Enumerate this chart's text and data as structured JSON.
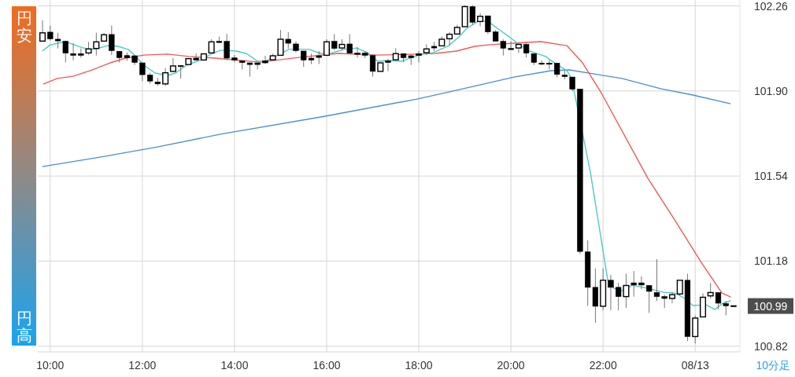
{
  "chart_data": {
    "type": "candlestick",
    "x": [
      9.833,
      10,
      10.167,
      10.333,
      10.5,
      10.667,
      10.833,
      11,
      11.167,
      11.333,
      11.5,
      11.667,
      11.833,
      12,
      12.167,
      12.333,
      12.5,
      12.667,
      12.833,
      13,
      13.167,
      13.333,
      13.5,
      13.667,
      13.833,
      14,
      14.167,
      14.333,
      14.5,
      14.667,
      14.833,
      15,
      15.167,
      15.333,
      15.5,
      15.667,
      15.833,
      16,
      16.167,
      16.333,
      16.5,
      16.667,
      16.833,
      17,
      17.167,
      17.333,
      17.5,
      17.667,
      17.833,
      18,
      18.167,
      18.333,
      18.5,
      18.667,
      18.833,
      19,
      19.167,
      19.333,
      19.5,
      19.667,
      19.833,
      20,
      20.167,
      20.333,
      20.5,
      20.667,
      20.833,
      21,
      21.167,
      21.333,
      21.5,
      21.667,
      21.833,
      22,
      22.167,
      22.333,
      22.5,
      22.667,
      22.833,
      23,
      23.167,
      23.333,
      23.5,
      23.667,
      23.833,
      24,
      24.167,
      24.333,
      24.5,
      24.667,
      24.833
    ],
    "ohlc": [
      [
        102.111,
        102.199,
        102.108,
        102.146
      ],
      [
        102.149,
        102.177,
        102.113,
        102.121
      ],
      [
        102.119,
        102.146,
        102.08,
        102.112
      ],
      [
        102.11,
        102.113,
        102.021,
        102.06
      ],
      [
        102.058,
        102.102,
        102.03,
        102.051
      ],
      [
        102.058,
        102.08,
        102.041,
        102.051
      ],
      [
        102.061,
        102.108,
        102.052,
        102.078
      ],
      [
        102.08,
        102.146,
        102.05,
        102.108
      ],
      [
        102.111,
        102.146,
        102.108,
        102.138
      ],
      [
        102.139,
        102.177,
        102.052,
        102.071
      ],
      [
        102.068,
        102.068,
        102.021,
        102.041
      ],
      [
        102.05,
        102.063,
        102.028,
        102.041
      ],
      [
        102.049,
        102.049,
        102.01,
        102.021
      ],
      [
        102.019,
        102.019,
        101.942,
        101.969
      ],
      [
        101.967,
        101.977,
        101.93,
        101.942
      ],
      [
        101.938,
        101.955,
        101.922,
        101.93
      ],
      [
        101.93,
        101.997,
        101.922,
        101.977
      ],
      [
        101.983,
        102.039,
        101.98,
        102.006
      ],
      [
        102.008,
        102.008,
        101.953,
        102.005
      ],
      [
        102.012,
        102.039,
        102.012,
        102.037
      ],
      [
        102.039,
        102.058,
        102.031,
        102.031
      ],
      [
        102.031,
        102.058,
        102.031,
        102.057
      ],
      [
        102.061,
        102.119,
        102.061,
        102.108
      ],
      [
        102.11,
        102.13,
        102.107,
        102.107
      ],
      [
        102.11,
        102.141,
        102.03,
        102.039
      ],
      [
        102.04,
        102.052,
        102.021,
        102.031
      ],
      [
        102.028,
        102.028,
        101.991,
        102.02
      ],
      [
        102.019,
        102.019,
        101.961,
        102.012
      ],
      [
        102.019,
        102.019,
        101.991,
        102.012
      ],
      [
        102.028,
        102.049,
        102.014,
        102.019
      ],
      [
        102.032,
        102.058,
        102.028,
        102.049
      ],
      [
        102.051,
        102.158,
        102.051,
        102.119
      ],
      [
        102.119,
        102.149,
        102.08,
        102.102
      ],
      [
        102.099,
        102.11,
        102.063,
        102.071
      ],
      [
        102.069,
        102.069,
        102.002,
        102.031
      ],
      [
        102.039,
        102.058,
        102.014,
        102.031
      ],
      [
        102.049,
        102.069,
        102.014,
        102.042
      ],
      [
        102.051,
        102.119,
        102.051,
        102.108
      ],
      [
        102.11,
        102.141,
        102.072,
        102.08
      ],
      [
        102.082,
        102.119,
        102.072,
        102.097
      ],
      [
        102.099,
        102.141,
        102.06,
        102.06
      ],
      [
        102.06,
        102.086,
        102.041,
        102.057
      ],
      [
        102.06,
        102.069,
        102.039,
        102.051
      ],
      [
        102.05,
        102.05,
        101.961,
        101.983
      ],
      [
        101.983,
        102.019,
        101.983,
        102.019
      ],
      [
        102.028,
        102.036,
        101.984,
        102.021
      ],
      [
        102.032,
        102.08,
        102.032,
        102.058
      ],
      [
        102.058,
        102.058,
        102.021,
        102.041
      ],
      [
        102.049,
        102.052,
        102.01,
        102.041
      ],
      [
        102.058,
        102.069,
        102.021,
        102.05
      ],
      [
        102.062,
        102.097,
        102.052,
        102.078
      ],
      [
        102.089,
        102.108,
        102.069,
        102.082
      ],
      [
        102.091,
        102.13,
        102.091,
        102.119
      ],
      [
        102.121,
        102.149,
        102.091,
        102.14
      ],
      [
        102.141,
        102.18,
        102.141,
        102.169
      ],
      [
        102.172,
        102.263,
        102.172,
        102.257
      ],
      [
        102.257,
        102.263,
        102.18,
        102.191
      ],
      [
        102.194,
        102.23,
        102.174,
        102.216
      ],
      [
        102.218,
        102.218,
        102.141,
        102.15
      ],
      [
        102.15,
        102.158,
        102.111,
        102.111
      ],
      [
        102.11,
        102.119,
        102.05,
        102.081
      ],
      [
        102.08,
        102.11,
        102.077,
        102.077
      ],
      [
        102.082,
        102.102,
        102.06,
        102.097
      ],
      [
        102.097,
        102.108,
        102.041,
        102.06
      ],
      [
        102.058,
        102.058,
        102.01,
        102.021
      ],
      [
        102.018,
        102.03,
        102.01,
        102.015
      ],
      [
        102.018,
        102.03,
        101.991,
        102.015
      ],
      [
        102.018,
        102.018,
        101.958,
        101.97
      ],
      [
        101.967,
        101.986,
        101.95,
        101.961
      ],
      [
        101.959,
        101.959,
        101.899,
        101.908
      ],
      [
        101.908,
        101.908,
        101.21,
        101.221
      ],
      [
        101.219,
        101.268,
        100.991,
        101.069
      ],
      [
        101.069,
        101.149,
        100.919,
        100.989
      ],
      [
        100.989,
        101.149,
        100.972,
        101.099
      ],
      [
        101.099,
        101.122,
        100.972,
        101.069
      ],
      [
        101.069,
        101.088,
        100.972,
        101.03
      ],
      [
        101.03,
        101.127,
        100.981,
        101.077
      ],
      [
        101.088,
        101.138,
        101.03,
        101.079
      ],
      [
        101.088,
        101.116,
        101.061,
        101.079
      ],
      [
        101.077,
        101.077,
        100.961,
        101.052
      ],
      [
        101.047,
        101.188,
        101.011,
        101.03
      ],
      [
        101.03,
        101.038,
        100.981,
        101.022
      ],
      [
        101.022,
        101.05,
        101.002,
        101.038
      ],
      [
        101.041,
        101.099,
        101.033,
        101.099
      ],
      [
        101.099,
        101.127,
        100.842,
        100.861
      ],
      [
        100.861,
        100.95,
        100.831,
        100.939
      ],
      [
        100.944,
        101.044,
        100.944,
        101.027
      ],
      [
        101.033,
        101.088,
        101.022,
        101.047
      ],
      [
        101.047,
        101.047,
        100.977,
        101.002
      ],
      [
        101.0,
        101.011,
        100.95,
        100.991
      ],
      [
        100.992,
        100.992,
        100.99,
        100.99
      ]
    ],
    "series": [
      {
        "type": "line",
        "color": "#4a8fd6",
        "x": [
          9.829,
          11.077,
          12.325,
          13.692,
          15.966,
          17.966,
          18.821,
          20.068,
          20.872,
          21.265,
          22.41,
          23.265,
          23.949,
          24.769
        ],
        "values": [
          101.58,
          101.62,
          101.663,
          101.717,
          101.793,
          101.866,
          101.903,
          101.959,
          101.986,
          101.989,
          101.953,
          101.909,
          101.883,
          101.846
        ]
      },
      {
        "type": "line",
        "color": "#ef5a5a",
        "x": [
          9.846,
          10.154,
          10.496,
          10.906,
          11.299,
          11.641,
          12.034,
          12.547,
          13.009,
          13.573,
          14.547,
          15.402,
          16.256,
          17.111,
          17.966,
          18.359,
          18.821,
          19.214,
          19.504,
          20.068,
          20.65,
          21.214,
          21.556,
          21.949,
          22.974,
          23.556,
          24.12,
          24.581,
          24.769
        ],
        "values": [
          101.929,
          101.953,
          101.962,
          101.989,
          102.019,
          102.039,
          102.052,
          102.056,
          102.046,
          102.039,
          102.022,
          102.042,
          102.059,
          102.052,
          102.056,
          102.059,
          102.069,
          102.089,
          102.095,
          102.102,
          102.109,
          102.092,
          102.019,
          101.896,
          101.53,
          101.354,
          101.178,
          101.045,
          101.028
        ]
      },
      {
        "type": "line",
        "color": "#4fc9c9",
        "x": [
          9.829,
          10,
          10.325,
          10.667,
          10.838,
          11.009,
          11.248,
          11.47,
          11.692,
          11.863,
          12.034,
          12.274,
          12.547,
          12.718,
          12.957,
          13.231,
          13.521,
          13.692,
          13.863,
          14.034,
          14.256,
          14.496,
          14.667,
          14.838,
          15.179,
          15.624,
          15.863,
          16.085,
          16.376,
          16.65,
          16.889,
          17.111,
          17.333,
          17.624,
          17.915,
          18.137,
          18.308,
          18.65,
          18.872,
          19.026,
          19.282,
          19.504,
          19.726,
          19.966,
          20.188,
          20.41,
          20.752,
          20.991,
          21.214,
          21.299,
          21.385,
          21.726,
          22.103,
          22.239,
          22.41,
          22.632,
          22.974,
          23.316,
          23.556,
          23.778,
          23.949,
          24.239,
          24.427,
          24.598,
          24.769
        ],
        "values": [
          102.069,
          102.095,
          102.109,
          102.085,
          102.076,
          102.079,
          102.092,
          102.089,
          102.076,
          102.046,
          102.009,
          101.976,
          101.966,
          101.976,
          102.009,
          102.029,
          102.059,
          102.072,
          102.072,
          102.069,
          102.059,
          102.026,
          102.026,
          102.042,
          102.076,
          102.076,
          102.059,
          102.059,
          102.076,
          102.082,
          102.062,
          102.026,
          102.029,
          102.026,
          102.046,
          102.059,
          102.062,
          102.092,
          102.129,
          102.162,
          102.195,
          102.195,
          102.162,
          102.129,
          102.095,
          102.069,
          102.046,
          102.012,
          101.986,
          101.959,
          101.886,
          101.554,
          101.098,
          101.065,
          101.055,
          101.078,
          101.065,
          101.048,
          101.045,
          101.022,
          100.992,
          100.995,
          100.975,
          101.002,
          101.012
        ]
      }
    ],
    "xlim": [
      9.73,
      24.97
    ],
    "xticks": [
      {
        "value": 10,
        "label": "10:00"
      },
      {
        "value": 12,
        "label": "12:00"
      },
      {
        "value": 14,
        "label": "14:00"
      },
      {
        "value": 16,
        "label": "16:00"
      },
      {
        "value": 18,
        "label": "18:00"
      },
      {
        "value": 20,
        "label": "20:00"
      },
      {
        "value": 22,
        "label": "22:00"
      },
      {
        "value": 24,
        "label": "08/13"
      }
    ],
    "ylim": [
      100.796,
      102.285
    ],
    "yticks": [
      102.26,
      {
        "value": 101.9,
        "label": "101.90"
      },
      101.54,
      101.18,
      100.82
    ],
    "grid": true,
    "annotations": [
      "円安",
      "円高",
      "10分足",
      "100.99"
    ]
  }
}
